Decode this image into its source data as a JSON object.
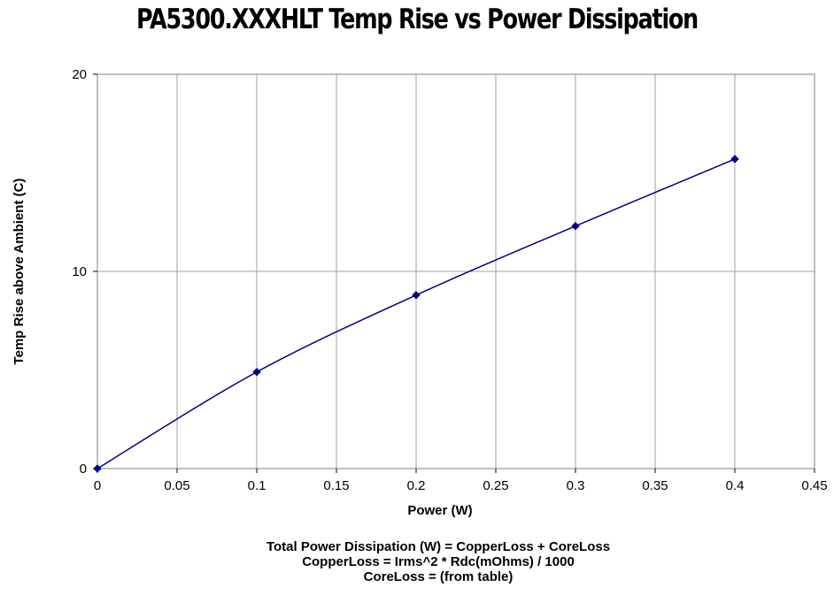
{
  "chart_data": {
    "type": "line",
    "title": "PA5300.XXXHLT Temp Rise vs Power Dissipation",
    "xlabel": "Power (W)",
    "ylabel": "Temp Rise above Ambient (C)",
    "xlim": [
      0,
      0.45
    ],
    "ylim": [
      0,
      20
    ],
    "x_ticks": [
      "0",
      "0.05",
      "0.1",
      "0.15",
      "0.2",
      "0.25",
      "0.3",
      "0.35",
      "0.4",
      "0.45"
    ],
    "y_ticks": [
      "0",
      "10",
      "20"
    ],
    "grid": true,
    "marker": "diamond",
    "color": "#000080",
    "series": [
      {
        "x": [
          0,
          0.1,
          0.2,
          0.3,
          0.4
        ],
        "y": [
          0,
          4.9,
          8.8,
          12.3,
          15.7
        ]
      }
    ]
  },
  "notes": [
    "Total Power Dissipation (W) = CopperLoss + CoreLoss",
    "CopperLoss = Irms^2 * Rdc(mOhms) / 1000",
    "CoreLoss = (from table)"
  ]
}
